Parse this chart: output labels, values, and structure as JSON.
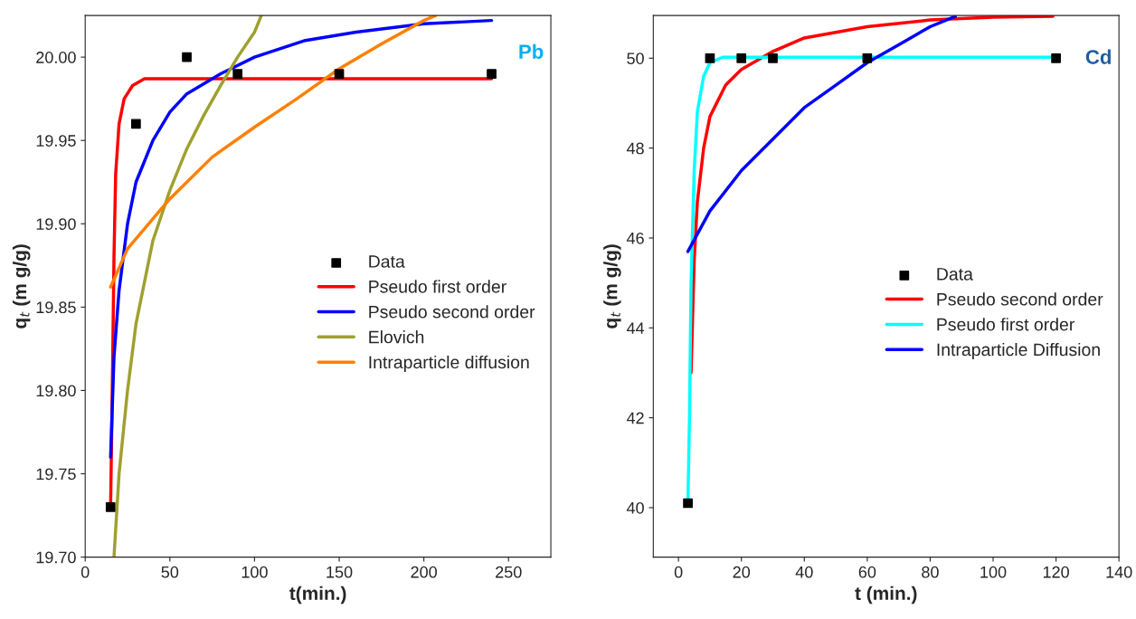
{
  "chart_data": [
    {
      "type": "line",
      "xlabel": "t(min.)",
      "ylabel": "q$_{t}$ (m g/g)",
      "xlim": [
        0,
        275
      ],
      "ylim": [
        19.7,
        20.025
      ],
      "xticks": [
        0,
        50,
        100,
        150,
        200,
        250
      ],
      "yticks": [
        {
          "value": 19.7,
          "label": "19.70"
        },
        {
          "value": 19.75,
          "label": "19.75"
        },
        {
          "value": 19.8,
          "label": "19.80"
        },
        {
          "value": 19.85,
          "label": "19.85"
        },
        {
          "value": 19.9,
          "label": "19.90"
        },
        {
          "value": 19.95,
          "label": "19.95"
        },
        {
          "value": 20.0,
          "label": "20.00"
        }
      ],
      "legend": "center right",
      "grid": false,
      "annotations": [
        "Pb"
      ],
      "series": [
        {
          "name": "Data",
          "type": "scatter",
          "marker": "square",
          "color": "#000000",
          "x": [
            15,
            30,
            60,
            90,
            150,
            240
          ],
          "values": [
            19.73,
            19.96,
            20.0,
            19.99,
            19.99,
            19.99
          ]
        },
        {
          "name": "Pseudo first order",
          "color": "#ff0000",
          "x": [
            15,
            16,
            17,
            18,
            20,
            23,
            28,
            35,
            240
          ],
          "values": [
            19.73,
            19.8,
            19.88,
            19.93,
            19.96,
            19.975,
            19.983,
            19.987,
            19.987
          ]
        },
        {
          "name": "Pseudo second order",
          "color": "#0000ff",
          "x": [
            15,
            17,
            20,
            25,
            30,
            40,
            50,
            60,
            80,
            100,
            130,
            160,
            200,
            240
          ],
          "values": [
            19.76,
            19.82,
            19.86,
            19.9,
            19.925,
            19.95,
            19.967,
            19.978,
            19.99,
            20.0,
            20.01,
            20.015,
            20.02,
            20.022
          ]
        },
        {
          "name": "Elovich",
          "color": "#a0a030",
          "x": [
            17,
            20,
            25,
            30,
            40,
            50,
            60,
            70,
            80,
            90,
            100,
            104
          ],
          "values": [
            19.7,
            19.75,
            19.8,
            19.84,
            19.89,
            19.92,
            19.945,
            19.965,
            19.983,
            20.0,
            20.015,
            20.025
          ]
        },
        {
          "name": "Intraparticle diffusion",
          "color": "#ff8000",
          "x": [
            15,
            25,
            50,
            75,
            100,
            125,
            150,
            175,
            200,
            207
          ],
          "values": [
            19.862,
            19.885,
            19.915,
            19.94,
            19.958,
            19.975,
            19.993,
            20.008,
            20.022,
            20.025
          ]
        }
      ]
    },
    {
      "type": "line",
      "xlabel": "t (min.)",
      "ylabel": "q$_{t}$ (m g/g)",
      "xlim": [
        -8,
        140
      ],
      "ylim": [
        38.9,
        50.95
      ],
      "xticks": [
        0,
        20,
        40,
        60,
        80,
        100,
        120,
        140
      ],
      "yticks": [
        40,
        42,
        44,
        46,
        48,
        50
      ],
      "legend": "center right",
      "grid": false,
      "annotations": [
        "Cd"
      ],
      "series": [
        {
          "name": "Data",
          "type": "scatter",
          "marker": "square",
          "color": "#000000",
          "x": [
            3,
            10,
            20,
            30,
            60,
            120
          ],
          "values": [
            40.1,
            50,
            50,
            50,
            50,
            50
          ]
        },
        {
          "name": "Pseudo second order",
          "color": "#ff0000",
          "x": [
            4,
            5,
            6,
            8,
            10,
            15,
            20,
            30,
            40,
            60,
            80,
            100,
            119
          ],
          "values": [
            43,
            45.5,
            46.8,
            48,
            48.7,
            49.4,
            49.75,
            50.15,
            50.45,
            50.7,
            50.85,
            50.91,
            50.93
          ]
        },
        {
          "name": "Pseudo first order",
          "color": "#00ffff",
          "x": [
            3,
            3.5,
            4,
            5,
            6,
            8,
            10,
            14,
            120
          ],
          "values": [
            40.1,
            42,
            45,
            47.5,
            48.8,
            49.6,
            49.9,
            50.02,
            50.02
          ]
        },
        {
          "name": "Intraparticle Diffusion",
          "color": "#0000ff",
          "x": [
            3,
            10,
            20,
            30,
            40,
            50,
            60,
            70,
            80,
            88
          ],
          "values": [
            45.7,
            46.6,
            47.5,
            48.2,
            48.9,
            49.4,
            49.9,
            50.3,
            50.7,
            50.93
          ]
        }
      ]
    }
  ]
}
